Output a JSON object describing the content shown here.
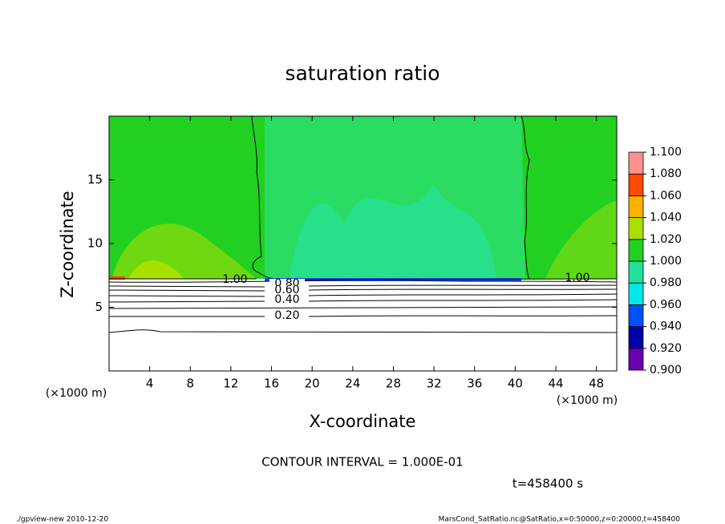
{
  "chart_data": {
    "type": "contour",
    "title": "saturation ratio",
    "xlabel": "X-coordinate",
    "ylabel": "Z-coordinate",
    "xunit": "(×1000 m)",
    "xlim": [
      0,
      50
    ],
    "ylim": [
      0,
      20
    ],
    "xticks": [
      4,
      8,
      12,
      16,
      20,
      24,
      28,
      32,
      36,
      40,
      44,
      48
    ],
    "yticks": [
      5,
      10,
      15
    ],
    "colorbar": {
      "levels": [
        {
          "value": 0.9,
          "label": "0.900"
        },
        {
          "value": 0.92,
          "label": "0.920"
        },
        {
          "value": 0.94,
          "label": "0.940"
        },
        {
          "value": 0.96,
          "label": "0.960"
        },
        {
          "value": 0.98,
          "label": "0.980"
        },
        {
          "value": 1.0,
          "label": "1.000"
        },
        {
          "value": 1.02,
          "label": "1.020"
        },
        {
          "value": 1.04,
          "label": "1.040"
        },
        {
          "value": 1.06,
          "label": "1.060"
        },
        {
          "value": 1.08,
          "label": "1.080"
        },
        {
          "value": 1.1,
          "label": "1.100"
        }
      ],
      "colors": [
        "#6a00b0",
        "#0000a8",
        "#0050ff",
        "#00e8e8",
        "#22e09a",
        "#22d022",
        "#a8e000",
        "#ffb000",
        "#ff4a00",
        "#ff9090"
      ]
    },
    "contour_labels": [
      "1.00",
      "0.80",
      "0.60",
      "0.40",
      "0.20",
      "1.00"
    ],
    "contour_interval": "CONTOUR INTERVAL = 1.000E-01",
    "time_label": "t=458400 s",
    "footer_left": "./gpview-new   2010-12-20",
    "footer_right": "MarsCond_SatRatio.nc@SatRatio,x=0:50000,z=0:20000,t=458400"
  }
}
